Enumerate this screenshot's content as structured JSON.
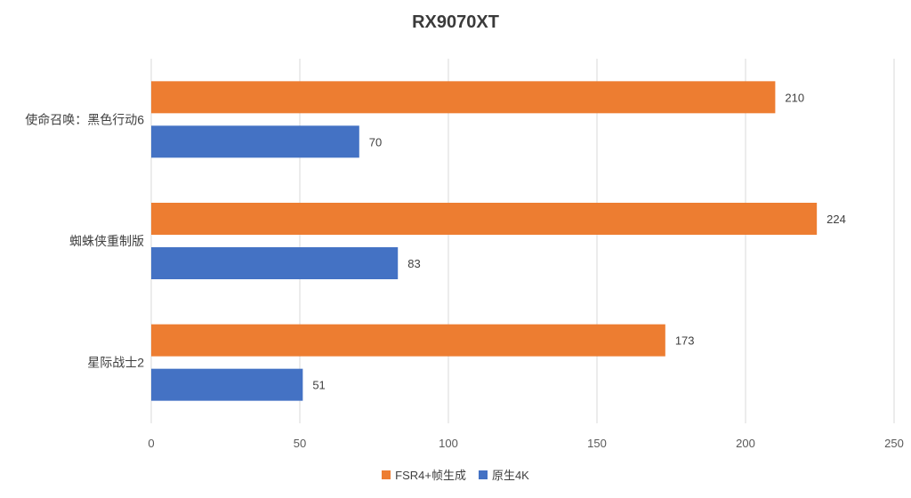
{
  "chart_data": {
    "type": "bar",
    "orientation": "horizontal",
    "title": "RX9070XT",
    "categories": [
      "使命召唤：黑色行动6",
      "蜘蛛侠重制版",
      "星际战士2"
    ],
    "series": [
      {
        "name": "FSR4+帧生成",
        "color": "#ed7d31",
        "values": [
          210,
          224,
          173
        ]
      },
      {
        "name": "原生4K",
        "color": "#4472c4",
        "values": [
          70,
          83,
          51
        ]
      }
    ],
    "x_ticks": [
      0,
      50,
      100,
      150,
      200,
      250
    ],
    "xlim": [
      0,
      250
    ],
    "grid": true,
    "data_labels": true,
    "legend_position": "bottom"
  }
}
